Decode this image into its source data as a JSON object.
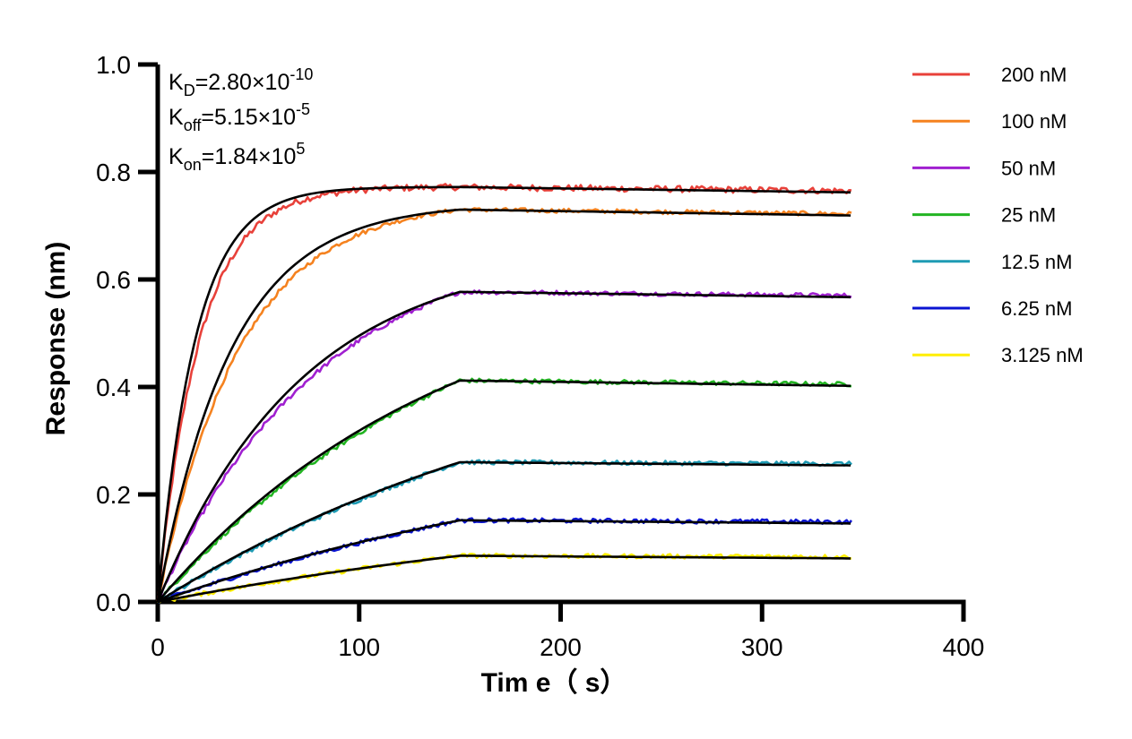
{
  "chart_data": {
    "type": "line",
    "title": "",
    "xlabel": "Tim e（ s）",
    "ylabel": "Response (nm)",
    "xlim": [
      0,
      400
    ],
    "ylim": [
      0,
      1.0
    ],
    "xticks": [
      "0",
      "100",
      "200",
      "300",
      "400"
    ],
    "yticks": [
      "0.0",
      "0.2",
      "0.4",
      "0.6",
      "0.8",
      "1.0"
    ],
    "grid": false,
    "legend_position": "top-right",
    "annotations": {
      "kd": {
        "base": "K",
        "sub": "D",
        "value": "=2.80×10",
        "exp": "-10"
      },
      "koff": {
        "base": "K",
        "sub": "off",
        "value": "=5.15×10",
        "exp": "-5"
      },
      "kon": {
        "base": "K",
        "sub": "on",
        "value": "=1.84×10",
        "exp": "5"
      }
    },
    "association_end": 150,
    "x_end": 345,
    "series": [
      {
        "name": "200 nM",
        "color": "#e8413a",
        "plateau": 0.772,
        "end": 0.765,
        "kobs": 0.048
      },
      {
        "name": "100 nM",
        "color": "#f5821f",
        "plateau": 0.73,
        "end": 0.722,
        "kobs": 0.0245
      },
      {
        "name": "50 nM",
        "color": "#a020d0",
        "plateau": 0.577,
        "end": 0.57,
        "kobs": 0.0125
      },
      {
        "name": "25 nM",
        "color": "#22b422",
        "plateau": 0.412,
        "end": 0.405,
        "kobs": 0.0062
      },
      {
        "name": "12.5 nM",
        "color": "#1e9bb4",
        "plateau": 0.26,
        "end": 0.257,
        "kobs": 0.004
      },
      {
        "name": "6.25 nM",
        "color": "#0a14d2",
        "plateau": 0.152,
        "end": 0.149,
        "kobs": 0.0035
      },
      {
        "name": "3.125 nM",
        "color": "#ffee00",
        "plateau": 0.086,
        "end": 0.084,
        "kobs": 0.003
      }
    ],
    "fit_color": "#000000"
  }
}
